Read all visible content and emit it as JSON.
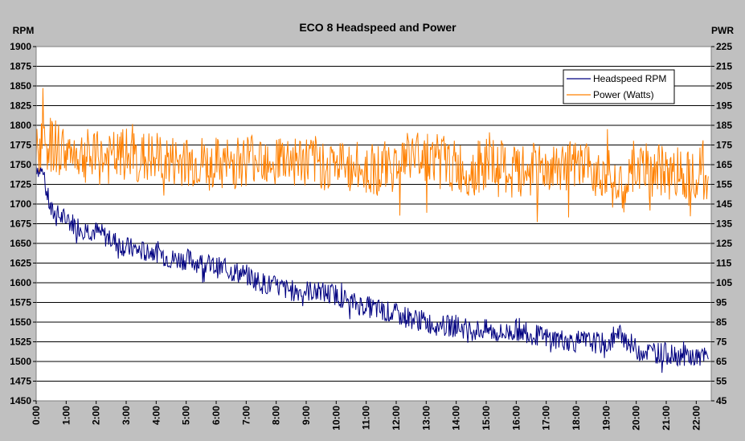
{
  "chart_data": {
    "type": "line",
    "title": "ECO 8 Headspeed and Power",
    "y_left_label": "RPM",
    "y_right_label": "PWR",
    "y_left_range": [
      1450,
      1900
    ],
    "y_left_ticks": [
      1900,
      1875,
      1850,
      1825,
      1800,
      1775,
      1750,
      1725,
      1700,
      1675,
      1650,
      1625,
      1600,
      1575,
      1550,
      1525,
      1500,
      1475,
      1450
    ],
    "y_right_range": [
      45,
      225
    ],
    "y_right_ticks": [
      225,
      215,
      205,
      195,
      185,
      175,
      165,
      155,
      145,
      135,
      125,
      115,
      105,
      95,
      85,
      75,
      65,
      55,
      45
    ],
    "x_range_minutes": [
      0,
      22.5
    ],
    "x_ticks": [
      "0:00",
      "1:00",
      "2:00",
      "3:00",
      "4:00",
      "5:00",
      "6:00",
      "7:00",
      "8:00",
      "9:00",
      "10:00",
      "11:00",
      "12:00",
      "13:00",
      "14:00",
      "15:00",
      "16:00",
      "17:00",
      "18:00",
      "19:00",
      "20:00",
      "21:00",
      "22:00"
    ],
    "grid": "horizontal",
    "legend_position": "top-right",
    "series": [
      {
        "name": "Headspeed RPM",
        "color": "#000080",
        "axis": "left",
        "x": [
          0,
          0.2,
          0.5,
          1,
          1.5,
          2,
          2.5,
          3,
          3.5,
          4,
          4.5,
          5,
          5.5,
          6,
          6.5,
          7,
          7.5,
          8,
          8.5,
          9,
          9.5,
          10,
          10.5,
          11,
          11.5,
          12,
          12.5,
          13,
          13.5,
          14,
          14.5,
          15,
          15.5,
          16,
          16.5,
          17,
          17.5,
          18,
          18.5,
          19,
          19.5,
          20,
          20.5,
          21,
          21.5,
          22,
          22.4
        ],
        "values": [
          1750,
          1740,
          1690,
          1680,
          1670,
          1665,
          1655,
          1645,
          1640,
          1640,
          1630,
          1630,
          1625,
          1620,
          1615,
          1610,
          1600,
          1595,
          1590,
          1590,
          1588,
          1585,
          1575,
          1570,
          1565,
          1560,
          1555,
          1550,
          1545,
          1545,
          1540,
          1540,
          1535,
          1540,
          1535,
          1530,
          1528,
          1525,
          1525,
          1522,
          1535,
          1515,
          1512,
          1510,
          1508,
          1505,
          1505
        ]
      },
      {
        "name": "Power (Watts)",
        "color": "#ff8000",
        "axis": "right",
        "x": [
          0,
          0.2,
          0.5,
          1,
          1.5,
          2,
          2.5,
          3,
          3.5,
          4,
          4.5,
          5,
          5.5,
          6,
          6.5,
          7,
          7.5,
          8,
          8.5,
          9,
          9.5,
          10,
          10.5,
          11,
          11.5,
          12,
          12.5,
          13,
          13.5,
          14,
          14.5,
          15,
          15.5,
          16,
          16.5,
          17,
          17.5,
          18,
          18.5,
          19,
          19.5,
          20,
          20.5,
          21,
          21.5,
          22,
          22.4
        ],
        "values": [
          170,
          175,
          175,
          172,
          170,
          168,
          168,
          170,
          168,
          168,
          166,
          166,
          166,
          165,
          165,
          168,
          170,
          168,
          168,
          166,
          166,
          165,
          163,
          163,
          163,
          165,
          170,
          170,
          168,
          163,
          162,
          165,
          162,
          160,
          162,
          163,
          163,
          163,
          163,
          162,
          150,
          163,
          162,
          161,
          161,
          162,
          160
        ]
      }
    ]
  }
}
